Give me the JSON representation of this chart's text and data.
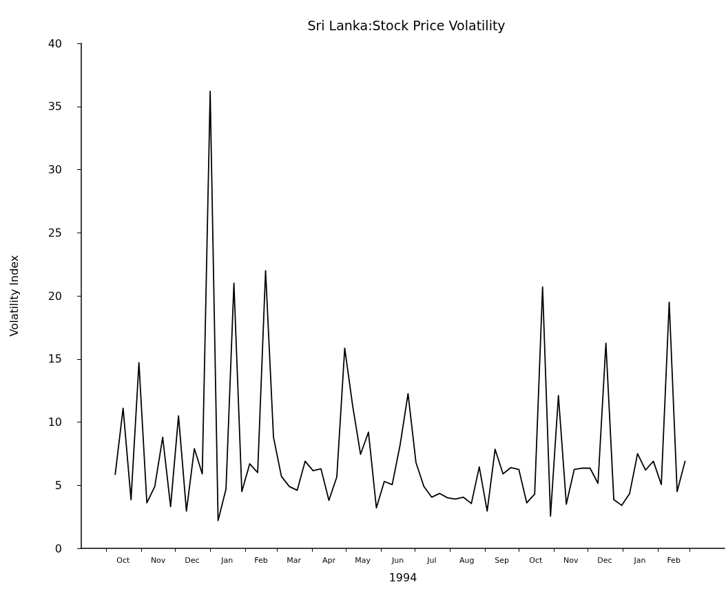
{
  "chart_data": {
    "type": "line",
    "title": "Sri Lanka:Stock Price Volatility",
    "xlabel": "1994",
    "ylabel": "Volatility Index",
    "x": [
      "1993-10-09",
      "1993-10-16",
      "1993-10-23",
      "1993-10-30",
      "1993-11-06",
      "1993-11-13",
      "1993-11-20",
      "1993-11-27",
      "1993-12-04",
      "1993-12-11",
      "1993-12-18",
      "1993-12-25",
      "1994-01-01",
      "1994-01-08",
      "1994-01-15",
      "1994-01-22",
      "1994-01-29",
      "1994-02-05",
      "1994-02-12",
      "1994-02-19",
      "1994-02-26",
      "1994-03-05",
      "1994-03-12",
      "1994-03-19",
      "1994-03-26",
      "1994-04-02",
      "1994-04-09",
      "1994-04-16",
      "1994-04-23",
      "1994-04-30",
      "1994-05-07",
      "1994-05-14",
      "1994-05-21",
      "1994-05-28",
      "1994-06-04",
      "1994-06-11",
      "1994-06-18",
      "1994-06-25",
      "1994-07-02",
      "1994-07-09",
      "1994-07-16",
      "1994-07-23",
      "1994-07-30",
      "1994-08-06",
      "1994-08-13",
      "1994-08-20",
      "1994-08-27",
      "1994-09-03",
      "1994-09-10",
      "1994-09-17",
      "1994-09-24",
      "1994-10-01",
      "1994-10-08",
      "1994-10-15",
      "1994-10-22",
      "1994-10-29",
      "1994-11-05",
      "1994-11-12",
      "1994-11-19",
      "1994-11-26",
      "1994-12-03",
      "1994-12-10",
      "1994-12-17",
      "1994-12-24",
      "1994-12-31",
      "1995-01-07",
      "1995-01-14",
      "1995-01-21",
      "1995-01-28",
      "1995-02-04",
      "1995-02-11",
      "1995-02-18",
      "1995-02-25"
    ],
    "series": [
      {
        "color": "#000000",
        "values": [
          5.85,
          11.1,
          3.85,
          14.7,
          3.6,
          4.9,
          8.8,
          3.3,
          10.5,
          2.95,
          7.9,
          5.9,
          36.2,
          2.2,
          4.7,
          21.0,
          4.5,
          6.7,
          6.0,
          22.0,
          8.8,
          5.7,
          4.9,
          4.6,
          6.9,
          6.15,
          6.3,
          3.8,
          5.65,
          15.85,
          11.3,
          7.45,
          9.2,
          3.2,
          5.3,
          5.05,
          8.2,
          12.25,
          6.8,
          4.9,
          4.05,
          4.35,
          4.0,
          3.9,
          4.05,
          3.55,
          6.45,
          2.95,
          7.85,
          5.9,
          6.4,
          6.25,
          3.6,
          4.3,
          20.7,
          2.55,
          12.1,
          3.5,
          6.25,
          6.35,
          6.35,
          5.15,
          16.25,
          3.85,
          3.4,
          4.35,
          7.5,
          6.2,
          6.9,
          5.05,
          19.5,
          4.5,
          6.9
        ]
      }
    ],
    "xlim": [
      "1993-09-09",
      "1995-04-01"
    ],
    "xticks": [
      {
        "value": "1993-10-01",
        "label": null
      },
      {
        "value": "1993-10-16",
        "label": "Oct"
      },
      {
        "value": "1993-11-01",
        "label": null
      },
      {
        "value": "1993-11-16",
        "label": "Nov"
      },
      {
        "value": "1993-12-01",
        "label": null
      },
      {
        "value": "1993-12-16",
        "label": "Dec"
      },
      {
        "value": "1994-01-01",
        "label": null
      },
      {
        "value": "1994-01-16",
        "label": "Jan"
      },
      {
        "value": "1994-02-01",
        "label": null
      },
      {
        "value": "1994-02-15",
        "label": "Feb"
      },
      {
        "value": "1994-03-01",
        "label": null
      },
      {
        "value": "1994-03-16",
        "label": "Mar"
      },
      {
        "value": "1994-04-01",
        "label": null
      },
      {
        "value": "1994-04-16",
        "label": "Apr"
      },
      {
        "value": "1994-05-01",
        "label": null
      },
      {
        "value": "1994-05-16",
        "label": "May"
      },
      {
        "value": "1994-06-01",
        "label": null
      },
      {
        "value": "1994-06-16",
        "label": "Jun"
      },
      {
        "value": "1994-07-01",
        "label": null
      },
      {
        "value": "1994-07-16",
        "label": "Jul"
      },
      {
        "value": "1994-08-01",
        "label": null
      },
      {
        "value": "1994-08-16",
        "label": "Aug"
      },
      {
        "value": "1994-09-01",
        "label": null
      },
      {
        "value": "1994-09-16",
        "label": "Sep"
      },
      {
        "value": "1994-10-01",
        "label": null
      },
      {
        "value": "1994-10-16",
        "label": "Oct"
      },
      {
        "value": "1994-11-01",
        "label": null
      },
      {
        "value": "1994-11-16",
        "label": "Nov"
      },
      {
        "value": "1994-12-01",
        "label": null
      },
      {
        "value": "1994-12-16",
        "label": "Dec"
      },
      {
        "value": "1995-01-01",
        "label": null
      },
      {
        "value": "1995-01-16",
        "label": "Jan"
      },
      {
        "value": "1995-02-01",
        "label": null
      },
      {
        "value": "1995-02-15",
        "label": "Feb"
      },
      {
        "value": "1995-03-01",
        "label": null
      }
    ],
    "ylim": [
      0,
      40
    ],
    "yticks": [
      0,
      5,
      10,
      15,
      20,
      25,
      30,
      35,
      40
    ],
    "grid": false,
    "marker": "none",
    "line_style": "solid"
  }
}
